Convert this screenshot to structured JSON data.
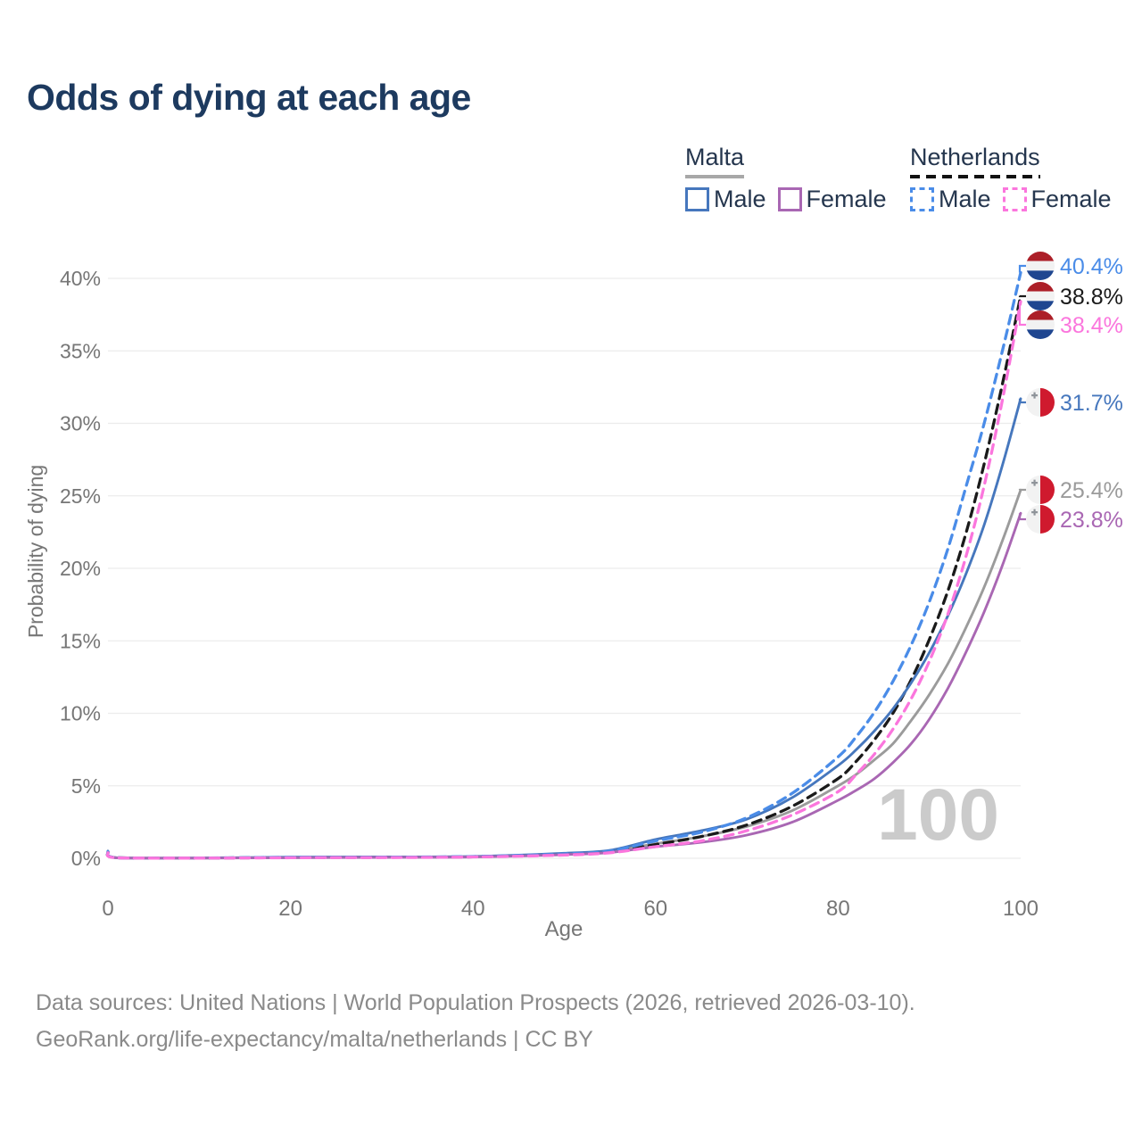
{
  "title": "Odds of dying at each age",
  "legend": {
    "groups": [
      {
        "name": "Malta",
        "line_style": "solid",
        "underline_color": "#a8a8a8",
        "items": [
          {
            "label": "Male",
            "color": "#4677bd"
          },
          {
            "label": "Female",
            "color": "#a967b3"
          }
        ]
      },
      {
        "name": "Netherlands",
        "line_style": "dashed",
        "underline_color": "#111111",
        "items": [
          {
            "label": "Male",
            "color": "#4a8ce8"
          },
          {
            "label": "Female",
            "color": "#fb76dd"
          }
        ]
      }
    ]
  },
  "footer": {
    "line1": "Data sources: United Nations | World Population Prospects (2026, retrieved 2026-03-10).",
    "line2": "GeoRank.org/life-expectancy/malta/netherlands | CC BY"
  },
  "chart_data": {
    "type": "line",
    "title": "Odds of dying at each age",
    "xlabel": "Age",
    "ylabel": "Probability of dying",
    "watermark": "100",
    "xlim": [
      0,
      100
    ],
    "ylim_pct": [
      0,
      40
    ],
    "x_ticks": [
      0,
      20,
      40,
      60,
      80,
      100
    ],
    "y_ticks_pct": [
      0,
      5,
      10,
      15,
      20,
      25,
      30,
      35,
      40
    ],
    "y_tick_suffix": "%",
    "grid": "horizontal",
    "ages": [
      0,
      1,
      10,
      20,
      30,
      40,
      50,
      55,
      60,
      65,
      70,
      75,
      80,
      82,
      84,
      86,
      88,
      90,
      92,
      94,
      96,
      98,
      100
    ],
    "series": [
      {
        "name": "Netherlands Male",
        "country": "Netherlands",
        "sex": "Male",
        "line": "dashed",
        "color": "#4a8ce8",
        "end_label": "40.4%",
        "values_pct": [
          0.45,
          0.04,
          0.02,
          0.07,
          0.08,
          0.12,
          0.3,
          0.5,
          1.2,
          1.8,
          2.8,
          4.5,
          7.0,
          8.4,
          10.1,
          12.2,
          14.7,
          17.7,
          21.3,
          25.6,
          30.0,
          35.0,
          40.4
        ]
      },
      {
        "name": "Netherlands Both sexes",
        "country": "Netherlands",
        "sex": "Both",
        "line": "dashed",
        "color": "#1a1a1a",
        "end_label": "38.8%",
        "values_pct": [
          0.42,
          0.035,
          0.015,
          0.05,
          0.07,
          0.1,
          0.28,
          0.45,
          0.95,
          1.5,
          2.3,
          3.6,
          5.5,
          6.7,
          8.2,
          10.0,
          12.3,
          15.1,
          18.4,
          22.4,
          27.2,
          32.7,
          38.8
        ]
      },
      {
        "name": "Netherlands Female",
        "country": "Netherlands",
        "sex": "Female",
        "line": "dashed",
        "color": "#fb76dd",
        "end_label": "38.4%",
        "values_pct": [
          0.38,
          0.03,
          0.012,
          0.04,
          0.05,
          0.09,
          0.22,
          0.38,
          0.8,
          1.2,
          1.9,
          3.0,
          4.6,
          5.8,
          7.2,
          8.9,
          11.0,
          13.6,
          16.8,
          20.8,
          25.7,
          31.6,
          38.4
        ]
      },
      {
        "name": "Malta Male",
        "country": "Malta",
        "sex": "Male",
        "line": "solid",
        "color": "#4677bd",
        "end_label": "31.7%",
        "values_pct": [
          0.5,
          0.04,
          0.02,
          0.08,
          0.09,
          0.13,
          0.35,
          0.55,
          1.3,
          1.9,
          2.7,
          4.2,
          6.4,
          7.5,
          8.8,
          10.3,
          12.1,
          14.2,
          16.7,
          19.6,
          23.0,
          27.1,
          31.7
        ]
      },
      {
        "name": "Malta Both sexes",
        "country": "Malta",
        "sex": "Both",
        "line": "solid",
        "color": "#9b9b9b",
        "end_label": "25.4%",
        "values_pct": [
          0.45,
          0.035,
          0.015,
          0.06,
          0.08,
          0.11,
          0.3,
          0.5,
          1.0,
          1.5,
          2.2,
          3.3,
          5.0,
          5.8,
          6.8,
          7.9,
          9.5,
          11.3,
          13.4,
          15.9,
          18.7,
          21.9,
          25.4
        ]
      },
      {
        "name": "Malta Female",
        "country": "Malta",
        "sex": "Female",
        "line": "solid",
        "color": "#a967b3",
        "end_label": "23.8%",
        "values_pct": [
          0.4,
          0.03,
          0.012,
          0.04,
          0.06,
          0.09,
          0.25,
          0.4,
          0.8,
          1.1,
          1.6,
          2.5,
          4.0,
          4.7,
          5.5,
          6.6,
          7.9,
          9.6,
          11.7,
          14.2,
          17.0,
          20.2,
          23.8
        ]
      }
    ],
    "flag_colors": {
      "netherlands": {
        "top": "#AC1F28",
        "middle": "#f2f2f2",
        "bottom": "#1F4690"
      },
      "malta": {
        "left": "#f2f2f2",
        "right": "#cf1a2e",
        "cross": "#8e9399"
      }
    }
  },
  "style": {
    "title_color": "#1d3a5f",
    "axis_text_color": "#767676",
    "grid_color": "#ececec",
    "watermark_color": "#cbcbcb",
    "footer_color": "#8a8a8a",
    "legend_text_color": "#25364e"
  }
}
